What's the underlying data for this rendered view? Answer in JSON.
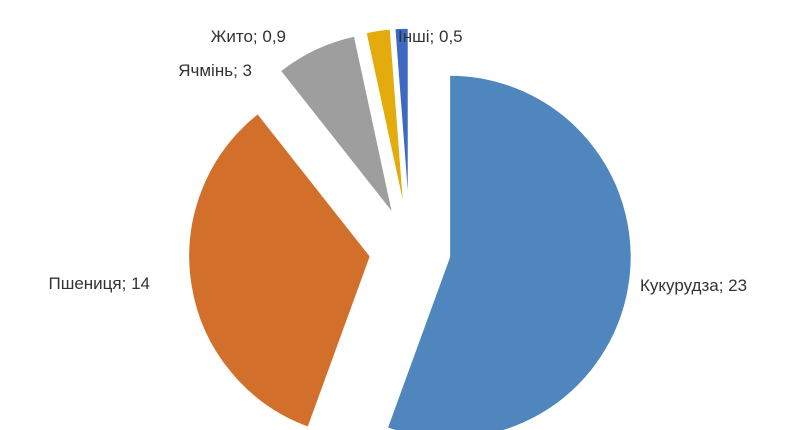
{
  "chart_data": {
    "type": "pie",
    "categories": [
      "Кукурудза",
      "Пшениця",
      "Ячмінь",
      "Жито",
      "Інші"
    ],
    "values": [
      23,
      14,
      3,
      0.9,
      0.5
    ],
    "value_labels": [
      "23",
      "14",
      "3",
      "0,9",
      "0,5"
    ],
    "label_separator": "; ",
    "colors": [
      "#4f86bd",
      "#d2702b",
      "#9e9e9e",
      "#e3ac0c",
      "#3d69c2"
    ],
    "exploded": true
  }
}
